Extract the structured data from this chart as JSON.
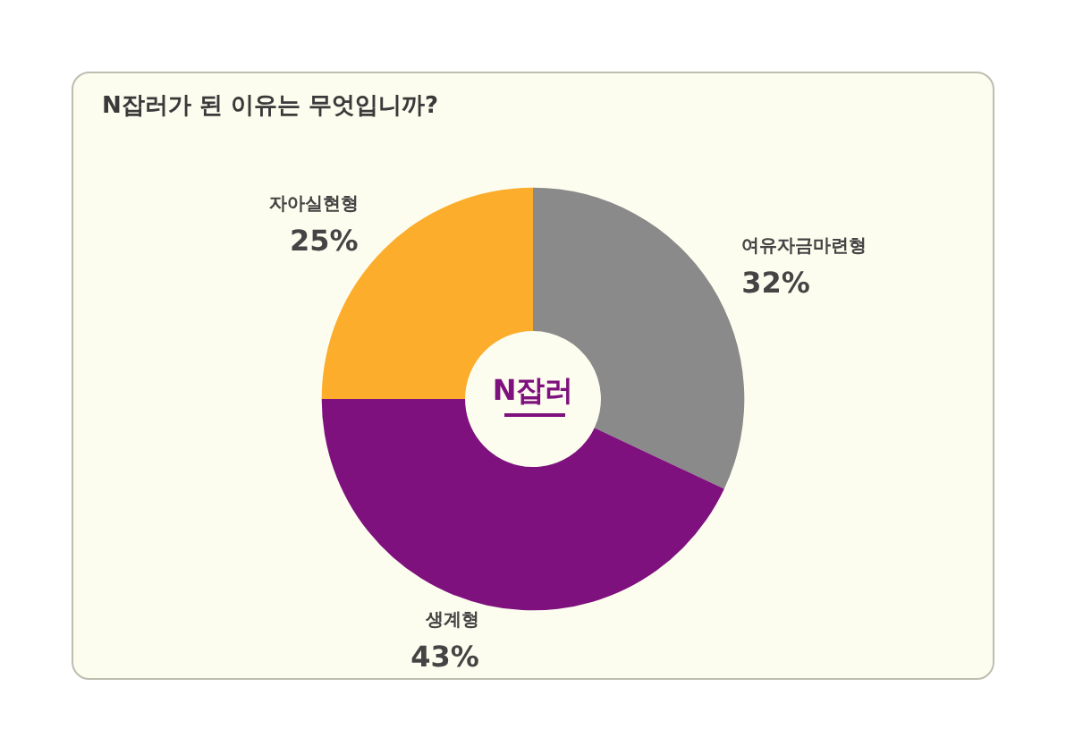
{
  "chart_data": {
    "type": "donut",
    "title": "N잡러가 된 이유는 무엇입니까?",
    "categories": [
      "여유자금마련형",
      "생계형",
      "자아실현형"
    ],
    "values": [
      32,
      43,
      25
    ],
    "value_labels": [
      "32%",
      "43%",
      "25%"
    ],
    "colors": [
      "#8a8a8a",
      "#7e117e",
      "#fbad2b"
    ],
    "annotations": [
      "N잡러"
    ],
    "legend": false
  }
}
